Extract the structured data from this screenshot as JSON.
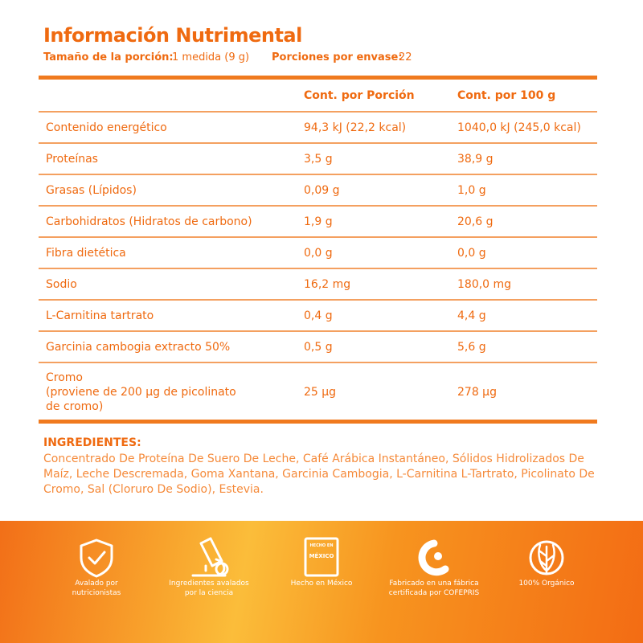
{
  "header": {
    "title": "Información Nutrimental",
    "serving_label": "Tamaño de la porción:",
    "serving_value": "1 medida (9 g)",
    "servings_label": "Porciones por envase:",
    "servings_value": "22"
  },
  "table": {
    "columns": [
      "Cont. por Porción",
      "Cont. por 100 g"
    ],
    "rows": [
      [
        "Contenido energético",
        "94,3 kJ (22,2 kcal)",
        "1040,0 kJ (245,0 kcal)"
      ],
      [
        "Proteínas",
        "3,5 g",
        "38,9 g"
      ],
      [
        "Grasas (Lípidos)",
        "0,09 g",
        "1,0 g"
      ],
      [
        "Carbohidratos (Hidratos de carbono)",
        "1,9 g",
        "20,6 g"
      ],
      [
        "Fibra dietética",
        "0,0 g",
        "0,0 g"
      ],
      [
        "Sodio",
        "16,2 mg",
        "180,0 mg"
      ],
      [
        "L-Carnitina tartrato",
        "0,4 g",
        "4,4 g"
      ],
      [
        "Garcinia cambogia extracto 50%",
        "0,5 g",
        "5,6 g"
      ],
      [
        "Cromo\n(proviene de 200 µg de picolinato\nde cromo)",
        "25 µg",
        "278 µg"
      ]
    ]
  },
  "ingredients": {
    "title": "INGREDIENTES:",
    "text": "Concentrado De Proteína De Suero De Leche, Café Arábica Instantáneo, Sólidos Hidrolizados De Maíz, Leche Descremada, Goma Xantana, Garcinia Cambogia, L-Carnitina L-Tartrato, Picolinato De Cromo, Sal (Cloruro De Sodio), Estevia."
  },
  "badges": [
    {
      "label": "Avalado por\nnutricionistas"
    },
    {
      "label": "Ingredientes avalados\npor la ciencia"
    },
    {
      "label": "Hecho en México",
      "icon_text": [
        "HECHO EN",
        "MÉXICO"
      ]
    },
    {
      "label": "Fabricado en una fábrica\ncertificada por COFEPRIS"
    },
    {
      "label": "100% Orgánico"
    }
  ]
}
